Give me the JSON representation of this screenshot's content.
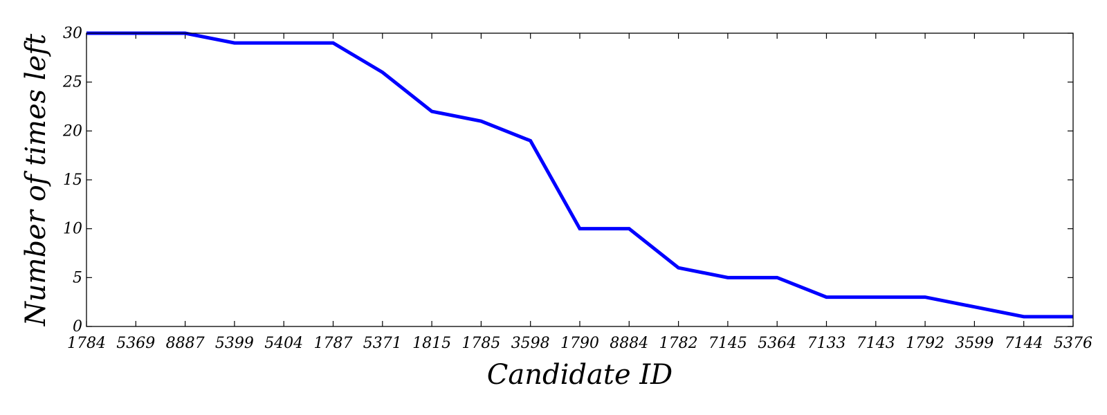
{
  "chart_data": {
    "type": "line",
    "title": "",
    "xlabel": "Candidate ID",
    "ylabel": "Number of times left",
    "categories": [
      "1784",
      "5369",
      "8887",
      "5399",
      "5404",
      "1787",
      "5371",
      "1815",
      "1785",
      "3598",
      "1790",
      "8884",
      "1782",
      "7145",
      "5364",
      "7133",
      "7143",
      "1792",
      "3599",
      "7144",
      "5376"
    ],
    "series": [
      {
        "values": [
          30,
          30,
          30,
          29,
          29,
          29,
          26,
          22,
          21,
          19,
          10,
          10,
          6,
          5,
          5,
          3,
          3,
          3,
          2,
          1,
          1
        ]
      }
    ],
    "ylim": [
      0,
      30
    ],
    "yticks": [
      "0",
      "5",
      "10",
      "15",
      "20",
      "25",
      "30"
    ],
    "grid": false,
    "line_color": "#0000ff"
  }
}
